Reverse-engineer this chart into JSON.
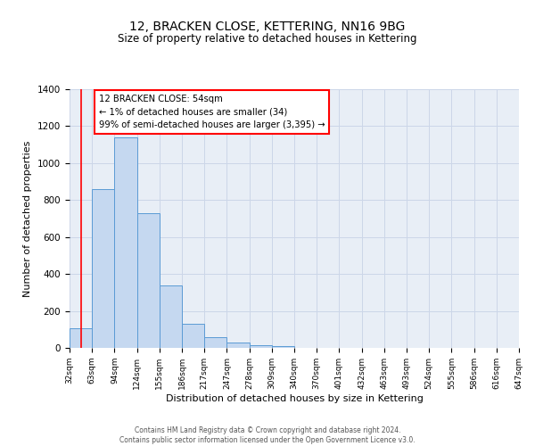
{
  "title": "12, BRACKEN CLOSE, KETTERING, NN16 9BG",
  "subtitle": "Size of property relative to detached houses in Kettering",
  "xlabel": "Distribution of detached houses by size in Kettering",
  "ylabel": "Number of detached properties",
  "bar_vals": [
    107,
    860,
    1140,
    730,
    340,
    130,
    60,
    30,
    15,
    10,
    0,
    0,
    0,
    0,
    0,
    0,
    0,
    0,
    0,
    0
  ],
  "categories": [
    "32sqm",
    "63sqm",
    "94sqm",
    "124sqm",
    "155sqm",
    "186sqm",
    "217sqm",
    "247sqm",
    "278sqm",
    "309sqm",
    "340sqm",
    "370sqm",
    "401sqm",
    "432sqm",
    "463sqm",
    "493sqm",
    "524sqm",
    "555sqm",
    "586sqm",
    "616sqm",
    "647sqm"
  ],
  "bar_color": "#c5d8f0",
  "bar_edge_color": "#5b9bd5",
  "grid_color": "#ccd6e8",
  "background_color": "#e8eef6",
  "ylim": [
    0,
    1400
  ],
  "yticks": [
    0,
    200,
    400,
    600,
    800,
    1000,
    1200,
    1400
  ],
  "annotation_title": "12 BRACKEN CLOSE: 54sqm",
  "annotation_line1": "← 1% of detached houses are smaller (34)",
  "annotation_line2": "99% of semi-detached houses are larger (3,395) →",
  "red_line_x": 0.5,
  "footer1": "Contains HM Land Registry data © Crown copyright and database right 2024.",
  "footer2": "Contains public sector information licensed under the Open Government Licence v3.0."
}
